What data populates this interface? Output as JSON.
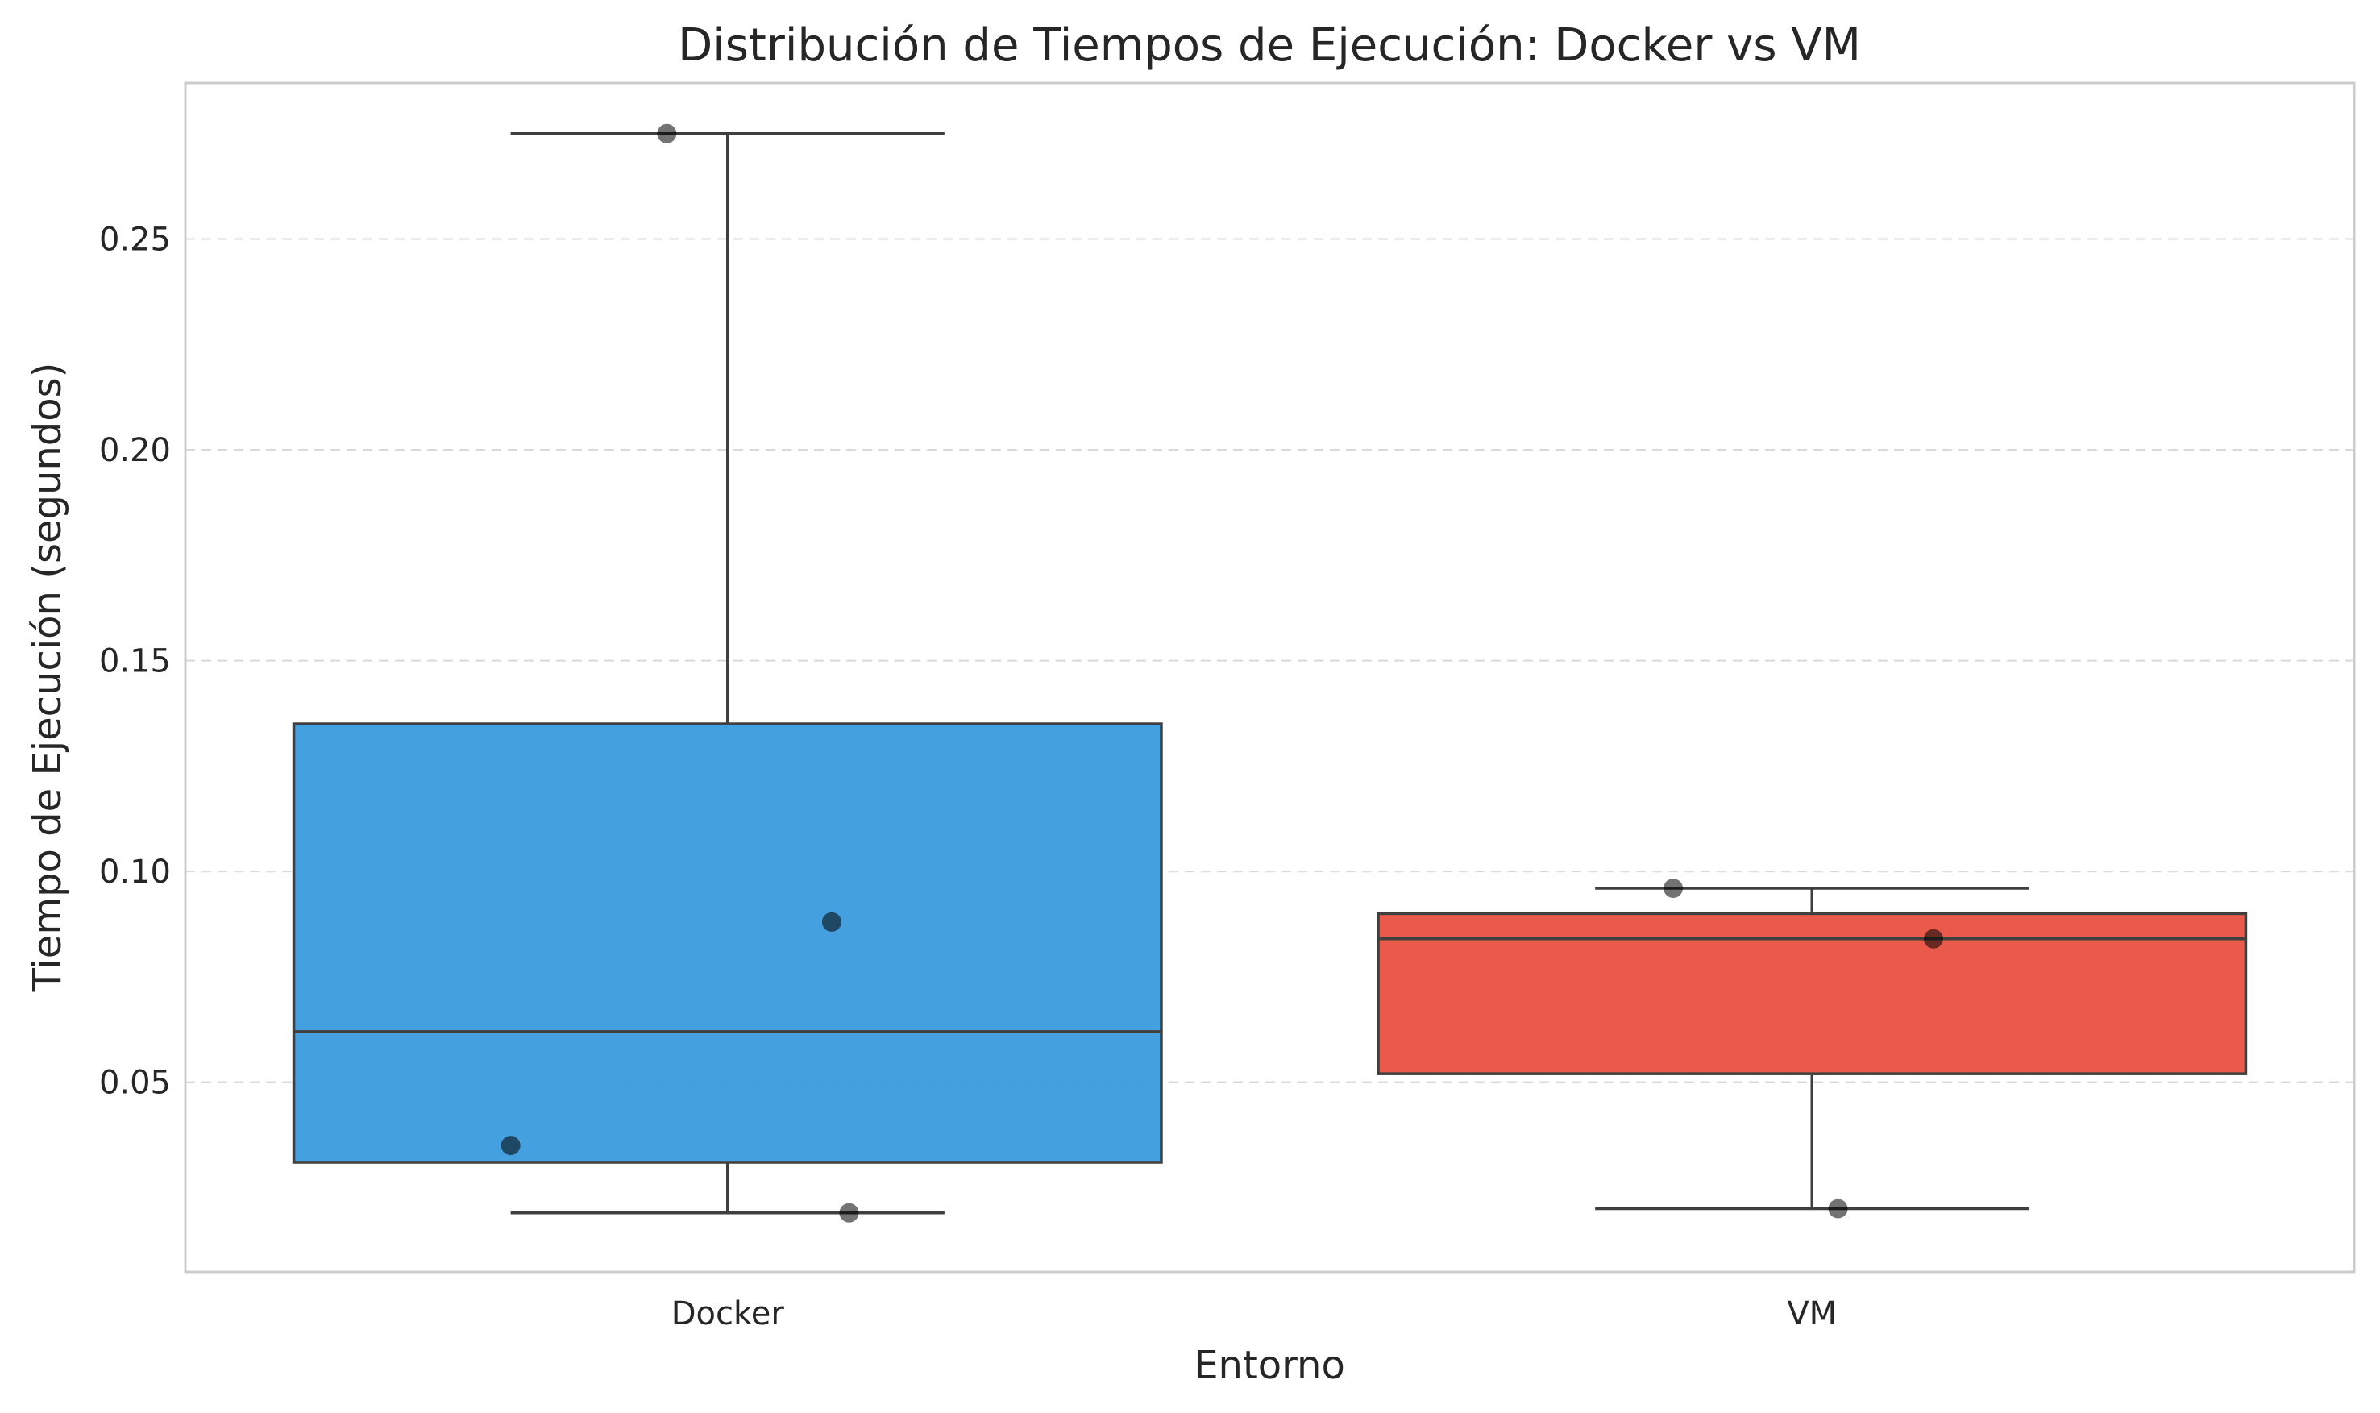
{
  "chart_data": {
    "type": "box",
    "title": "Distribución de Tiempos de Ejecución: Docker vs VM",
    "xlabel": "Entorno",
    "ylabel": "Tiempo de Ejecución (segundos)",
    "ylim": [
      0.005,
      0.287
    ],
    "yticks": [
      0.05,
      0.1,
      0.15,
      0.2,
      0.25
    ],
    "ytick_labels": [
      "0.05",
      "0.10",
      "0.15",
      "0.20",
      "0.25"
    ],
    "grid": "y-dashed",
    "categories": [
      "Docker",
      "VM"
    ],
    "boxes": [
      {
        "name": "Docker",
        "color": "#3498db",
        "whisker_low": 0.019,
        "q1": 0.031,
        "median": 0.062,
        "q3": 0.135,
        "whisker_high": 0.275,
        "points": [
          0.275,
          0.088,
          0.035,
          0.019
        ],
        "point_offsets": [
          -0.07,
          0.12,
          -0.25,
          0.14
        ]
      },
      {
        "name": "VM",
        "color": "#e74c3c",
        "whisker_low": 0.02,
        "q1": 0.052,
        "median": 0.084,
        "q3": 0.09,
        "whisker_high": 0.096,
        "points": [
          0.096,
          0.084,
          0.02
        ],
        "point_offsets": [
          -0.16,
          0.14,
          0.03
        ]
      }
    ]
  }
}
